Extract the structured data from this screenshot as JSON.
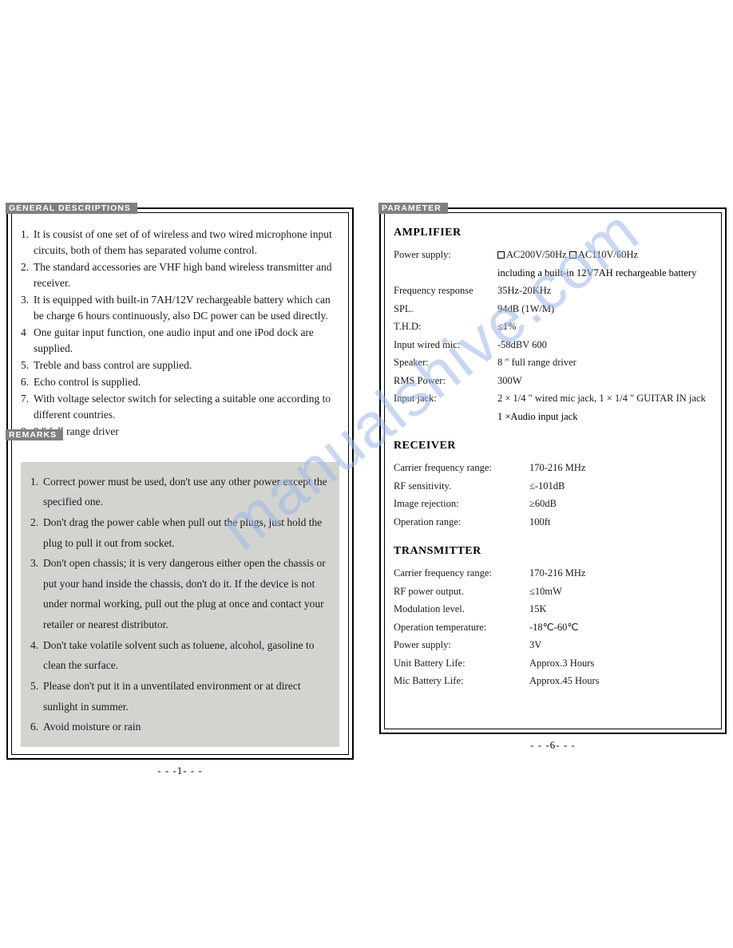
{
  "watermark": "manualshive.com",
  "leftPage": {
    "header1": "GENERAL DESCRIPTIONS",
    "descriptions": [
      {
        "n": "1.",
        "t": "It is cousist of one set of of wireless and two wired microphone input circuits, both of them has separated volume control."
      },
      {
        "n": "2.",
        "t": "The standard accessories are VHF high band wireless transmitter and receiver."
      },
      {
        "n": "3.",
        "t": "It is equipped with built-in 7AH/12V rechargeable battery which can be charge 6 hours continuously, also DC power can be used directly."
      },
      {
        "n": "4",
        "t": "One guitar input function, one audio input and one iPod dock are supplied."
      },
      {
        "n": "5.",
        "t": "Treble and bass control are supplied."
      },
      {
        "n": "6.",
        "t": "Echo control is supplied."
      },
      {
        "n": "7.",
        "t": "With voltage selector switch for selecting a suitable one according to different countries."
      },
      {
        "n": "8.",
        "t": "8 \" full range driver"
      }
    ],
    "header2": "REMARKS",
    "remarks": [
      {
        "n": "1.",
        "t": "Correct power must be used, don't use any other power except the specified one."
      },
      {
        "n": "2.",
        "t": "Don't drag the power cable when pull out the plugs, just hold the plug to pull it out from socket."
      },
      {
        "n": "3.",
        "t": "Don't open chassis; it is very dangerous either open the chassis or put your hand inside the chassis, don't do it. If the device is not under normal working, pull out the plug at once and contact your retailer or nearest distributor."
      },
      {
        "n": "4.",
        "t": "Don't take volatile solvent such as toluene, alcohol, gasoline to clean the surface."
      },
      {
        "n": "5.",
        "t": "Please don't put it in a unventilated environment or at direct sunlight in summer."
      },
      {
        "n": "6.",
        "t": "Avoid moisture or rain"
      }
    ],
    "pageNum": "- - -1- - -"
  },
  "rightPage": {
    "header": "PARAMETER",
    "amplifier": {
      "title": "AMPLIFIER",
      "rows": [
        {
          "l": "Power supply:",
          "v": "AC200V/50Hz",
          "v2": "AC110V/60Hz",
          "checkboxes": true
        },
        {
          "sub": "including a built-in 12V7AH rechargeable battery"
        },
        {
          "l": "Frequency response",
          "v": "35Hz-20KHz"
        },
        {
          "l": "SPL.",
          "v": "94dB (1W/M)"
        },
        {
          "l": "T.H.D:",
          "v": "≤1%"
        },
        {
          "l": "Input wired mic:",
          "v": "-58dBV 600"
        },
        {
          "l": "Speaker:",
          "v": "8 \" full range driver"
        },
        {
          "l": "RMS Power:",
          "v": "300W"
        },
        {
          "l": "Input jack:",
          "v": "2 × 1/4 \"  wired mic jack, 1 × 1/4 \" GUITAR IN jack"
        },
        {
          "sub": "1 ×Audio input jack"
        }
      ]
    },
    "receiver": {
      "title": "RECEIVER",
      "rows": [
        {
          "l": "Carrier frequency range:",
          "v": "170-216 MHz"
        },
        {
          "l": "RF sensitivity.",
          "v": "≤-101dB"
        },
        {
          "l": "Image rejection:",
          "v": "≥60dB"
        },
        {
          "l": "Operation range:",
          "v": "100ft"
        }
      ]
    },
    "transmitter": {
      "title": "TRANSMITTER",
      "rows": [
        {
          "l": "Carrier frequency range:",
          "v": "170-216 MHz"
        },
        {
          "l": "RF power output.",
          "v": "≤10mW"
        },
        {
          "l": "Modulation level.",
          "v": "15K"
        },
        {
          "l": "Operation temperature:",
          "v": "-18℃-60℃"
        },
        {
          "l": "Power supply:",
          "v": "3V"
        },
        {
          "l": "Unit Battery Life:",
          "v": "Approx.3 Hours"
        },
        {
          "l": "Mic Battery Life:",
          "v": "Approx.45 Hours"
        }
      ]
    },
    "pageNum": "- - -6- - -"
  },
  "style": {
    "page_border_color": "#000000",
    "section_label_bg": "#808080",
    "section_label_fg": "#ffffff",
    "remarks_bg": "#d3d3d0",
    "body_font": "Times New Roman",
    "label_font": "Arial",
    "watermark_color": "#9db8e8",
    "text_color": "#1a1a1a",
    "body_fontsize_pt": 13.5,
    "param_fontsize_pt": 12.5,
    "title_fontsize_pt": 14,
    "label_fontsize_pt": 10.5
  }
}
